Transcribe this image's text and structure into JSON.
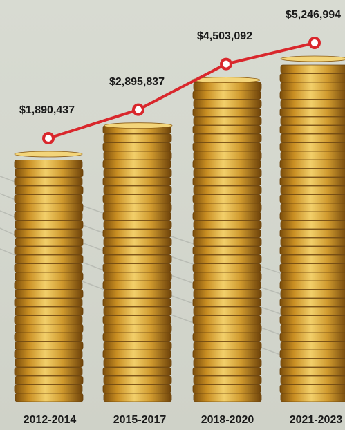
{
  "chart_data": {
    "type": "line",
    "categories": [
      "2012-2014",
      "2015-2017",
      "2018-2020",
      "2021-2023"
    ],
    "values": [
      1890437,
      2895837,
      4503092,
      5246994
    ],
    "value_labels": [
      "$1,890,437",
      "$2,895,837",
      "$4,503,092",
      "$5,246,994"
    ],
    "color": "#d9272c"
  }
}
